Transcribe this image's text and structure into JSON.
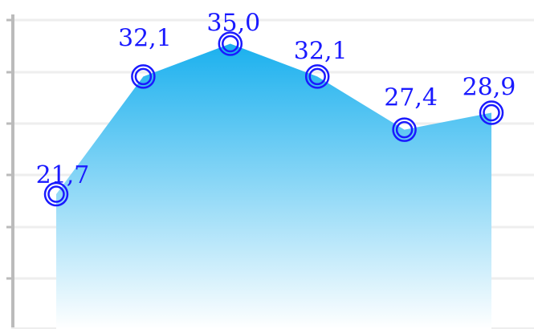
{
  "chart_data": {
    "type": "area",
    "title": "",
    "xlabel": "",
    "ylabel": "",
    "x": [
      1,
      2,
      3,
      4,
      5,
      6
    ],
    "series": [
      {
        "values": [
          21.7,
          32.1,
          35.0,
          32.1,
          27.4,
          28.9
        ]
      }
    ],
    "data_labels": [
      "21,7",
      "32,1",
      "35,0",
      "32,1",
      "27,4",
      "28,9"
    ],
    "ylim": [
      0,
      40
    ],
    "grid": true,
    "legend": "none",
    "colors": {
      "area_top": "#1ab0ee",
      "area_bottom": "#ffffff",
      "marker": "#1a1aff",
      "label": "#1a1aff",
      "grid": "#eeeeee",
      "axis": "#bbbbbb"
    }
  }
}
